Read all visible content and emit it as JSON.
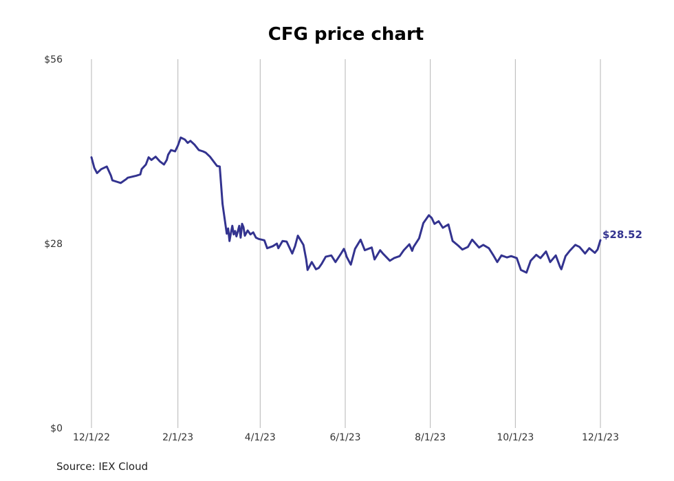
{
  "chart_data": {
    "type": "line",
    "title": "CFG price chart",
    "source": "Source: IEX Cloud",
    "xlabel": "",
    "ylabel": "",
    "ylim": [
      0,
      56
    ],
    "yticks": [
      0,
      28,
      56
    ],
    "ytick_labels": [
      "$0",
      "$28",
      "$56"
    ],
    "xtick_labels": [
      "12/1/22",
      "2/1/23",
      "4/1/23",
      "6/1/23",
      "8/1/23",
      "10/1/23",
      "12/1/23"
    ],
    "grid": "vertical",
    "line_color": "#33338f",
    "last_value_label": "$28.52",
    "series": [
      {
        "x": [
          "2022-12-01",
          "2022-12-03",
          "2022-12-05",
          "2022-12-08",
          "2022-12-12",
          "2022-12-15",
          "2022-12-16",
          "2022-12-19",
          "2022-12-22",
          "2022-12-26",
          "2022-12-27",
          "2023-01-02",
          "2023-01-05",
          "2023-01-06",
          "2023-01-09",
          "2023-01-11",
          "2023-01-13",
          "2023-01-16",
          "2023-01-19",
          "2023-01-22",
          "2023-01-24",
          "2023-01-25",
          "2023-01-27",
          "2023-01-30",
          "2023-02-01",
          "2023-02-03",
          "2023-02-06",
          "2023-02-08",
          "2023-02-10",
          "2023-02-13",
          "2023-02-16",
          "2023-02-19",
          "2023-02-21",
          "2023-02-24",
          "2023-03-01",
          "2023-03-03",
          "2023-03-05",
          "2023-03-08",
          "2023-03-09",
          "2023-03-10",
          "2023-03-11",
          "2023-03-12",
          "2023-03-13",
          "2023-03-14",
          "2023-03-15",
          "2023-03-17",
          "2023-03-18",
          "2023-03-19",
          "2023-03-20",
          "2023-03-21",
          "2023-03-23",
          "2023-03-25",
          "2023-03-27",
          "2023-03-29",
          "2023-03-31",
          "2023-04-04",
          "2023-04-06",
          "2023-04-10",
          "2023-04-13",
          "2023-04-14",
          "2023-04-17",
          "2023-04-20",
          "2023-04-24",
          "2023-04-26",
          "2023-04-28",
          "2023-05-02",
          "2023-05-04",
          "2023-05-05",
          "2023-05-08",
          "2023-05-11",
          "2023-05-13",
          "2023-05-15",
          "2023-05-18",
          "2023-05-22",
          "2023-05-25",
          "2023-05-29",
          "2023-05-31",
          "2023-06-01",
          "2023-06-02",
          "2023-06-05",
          "2023-06-08",
          "2023-06-12",
          "2023-06-15",
          "2023-06-20",
          "2023-06-22",
          "2023-06-26",
          "2023-06-28",
          "2023-07-03",
          "2023-07-06",
          "2023-07-10",
          "2023-07-13",
          "2023-07-17",
          "2023-07-19",
          "2023-07-20",
          "2023-07-24",
          "2023-07-27",
          "2023-07-31",
          "2023-08-02",
          "2023-08-04",
          "2023-08-07",
          "2023-08-10",
          "2023-08-14",
          "2023-08-17",
          "2023-08-21",
          "2023-08-24",
          "2023-08-28",
          "2023-08-31",
          "2023-09-05",
          "2023-09-08",
          "2023-09-12",
          "2023-09-15",
          "2023-09-18",
          "2023-09-21",
          "2023-09-25",
          "2023-09-28",
          "2023-10-02",
          "2023-10-05",
          "2023-10-09",
          "2023-10-12",
          "2023-10-16",
          "2023-10-19",
          "2023-10-23",
          "2023-10-26",
          "2023-10-30",
          "2023-11-02",
          "2023-11-03",
          "2023-11-06",
          "2023-11-09",
          "2023-11-13",
          "2023-11-16",
          "2023-11-20",
          "2023-11-23",
          "2023-11-27",
          "2023-11-29",
          "2023-12-01"
        ],
        "y": [
          41.1,
          39.5,
          38.7,
          39.3,
          39.7,
          38.3,
          37.6,
          37.4,
          37.2,
          37.8,
          38.0,
          38.3,
          38.5,
          39.3,
          40.0,
          41.1,
          40.7,
          41.2,
          40.5,
          40.0,
          40.7,
          41.5,
          42.2,
          42.0,
          42.9,
          44.1,
          43.8,
          43.3,
          43.6,
          43.0,
          42.2,
          42.0,
          41.8,
          41.2,
          39.8,
          39.7,
          34.0,
          29.5,
          30.3,
          28.4,
          29.6,
          30.7,
          29.4,
          29.9,
          29.1,
          30.7,
          28.9,
          31.0,
          30.5,
          29.2,
          30.0,
          29.4,
          29.7,
          28.9,
          28.7,
          28.5,
          27.3,
          27.6,
          28.0,
          27.3,
          28.4,
          28.3,
          26.5,
          27.6,
          29.2,
          27.8,
          25.6,
          24.0,
          25.2,
          24.1,
          24.3,
          24.9,
          26.0,
          26.2,
          25.2,
          26.5,
          27.2,
          26.7,
          26.0,
          24.8,
          27.2,
          28.6,
          27.0,
          27.4,
          25.6,
          27.0,
          26.5,
          25.4,
          25.8,
          26.1,
          27.0,
          27.9,
          26.9,
          27.5,
          28.8,
          31.1,
          32.3,
          31.9,
          31.0,
          31.4,
          30.4,
          30.9,
          28.4,
          27.7,
          27.1,
          27.5,
          28.6,
          27.4,
          27.8,
          27.3,
          26.3,
          25.2,
          26.2,
          25.9,
          26.1,
          25.8,
          24.0,
          23.6,
          25.4,
          26.3,
          25.8,
          26.8,
          25.2,
          26.2,
          24.5,
          24.1,
          26.1,
          26.9,
          27.8,
          27.5,
          26.5,
          27.3,
          26.6,
          27.1,
          28.52
        ]
      }
    ]
  }
}
